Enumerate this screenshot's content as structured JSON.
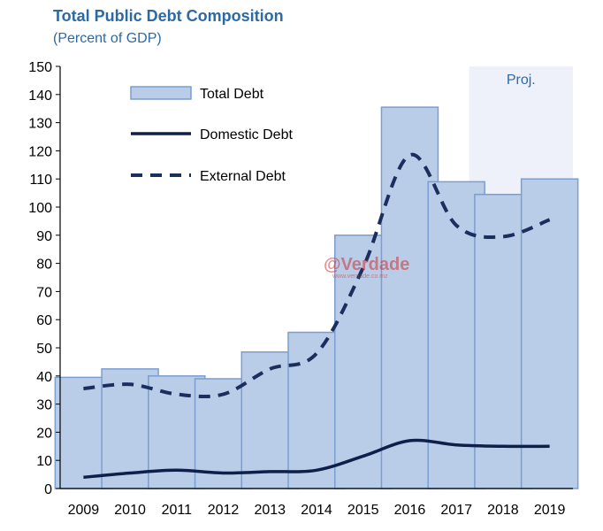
{
  "chart_data": {
    "type": "bar",
    "title": "Total Public Debt Composition",
    "subtitle": "(Percent of GDP)",
    "categories": [
      "2009",
      "2010",
      "2011",
      "2012",
      "2013",
      "2014",
      "2015",
      "2016",
      "2017",
      "2018",
      "2019"
    ],
    "series": [
      {
        "name": "Total Debt",
        "kind": "bar",
        "values": [
          39.5,
          42.5,
          40,
          39,
          48.5,
          55.5,
          90,
          135.5,
          109,
          104.5,
          110
        ]
      },
      {
        "name": "Domestic Debt",
        "kind": "line",
        "values": [
          4,
          5.5,
          6.5,
          5.5,
          6,
          6.5,
          11.5,
          17,
          15.5,
          15,
          15
        ]
      },
      {
        "name": "External Debt",
        "kind": "dashed-line",
        "values": [
          35.5,
          37,
          33.5,
          33.5,
          42.5,
          48,
          78.5,
          118.5,
          93.5,
          89.5,
          95.5
        ]
      }
    ],
    "ylim": [
      0,
      150
    ],
    "yticks": [
      "0",
      "10",
      "20",
      "30",
      "40",
      "50",
      "60",
      "70",
      "80",
      "90",
      "100",
      "110",
      "120",
      "130",
      "140",
      "150"
    ],
    "projection_label": "Proj.",
    "projection_from": "2018",
    "legend_position": "top-left",
    "colors": {
      "bar_fill": "#b9cde8",
      "bar_stroke": "#7a9ed0",
      "domestic": "#0f1f4a",
      "external": "#1b2f5e",
      "projection_shade": "#eef1fa",
      "title": "#2b6aa3"
    }
  },
  "watermark": {
    "text": "@Verdade",
    "url": "www.verdade.co.mz"
  }
}
